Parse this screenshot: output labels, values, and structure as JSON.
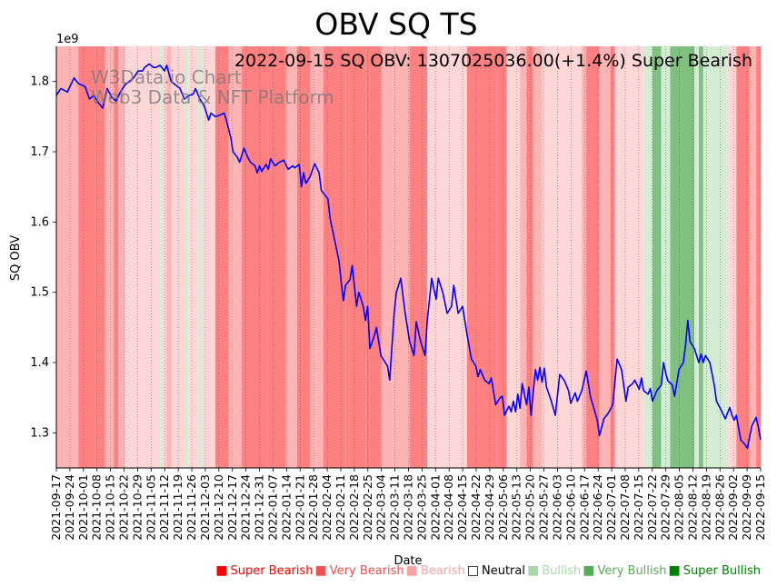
{
  "chart_data": {
    "type": "line",
    "title": "OBV SQ TS",
    "annotation": "2022-09-15 SQ OBV: 1307025036.00(+1.4%) Super Bearish",
    "watermark": [
      "W3Data.io Chart",
      "Web3 Data & NFT Platform"
    ],
    "xlabel": "Date",
    "ylabel": "SQ OBV",
    "y_exponent_label": "1e9",
    "ylim": [
      1.25,
      1.85
    ],
    "yticks": [
      1.3,
      1.4,
      1.5,
      1.6,
      1.7,
      1.8
    ],
    "ytick_labels": [
      "1.3",
      "1.4",
      "1.5",
      "1.6",
      "1.7",
      "1.8"
    ],
    "xlim": [
      "2021-09-17",
      "2022-09-15"
    ],
    "xtick_labels": [
      "2021-09-17",
      "2021-09-24",
      "2021-10-01",
      "2021-10-08",
      "2021-10-15",
      "2021-10-22",
      "2021-10-29",
      "2021-11-05",
      "2021-11-12",
      "2021-11-19",
      "2021-11-26",
      "2021-12-03",
      "2021-12-10",
      "2021-12-17",
      "2021-12-24",
      "2021-12-31",
      "2022-01-07",
      "2022-01-14",
      "2022-01-21",
      "2022-01-28",
      "2022-02-04",
      "2022-02-11",
      "2022-02-18",
      "2022-02-25",
      "2022-03-04",
      "2022-03-11",
      "2022-03-18",
      "2022-03-25",
      "2022-04-01",
      "2022-04-08",
      "2022-04-15",
      "2022-04-22",
      "2022-04-29",
      "2022-05-06",
      "2022-05-13",
      "2022-05-20",
      "2022-05-27",
      "2022-06-03",
      "2022-06-10",
      "2022-06-17",
      "2022-06-24",
      "2022-07-01",
      "2022-07-08",
      "2022-07-15",
      "2022-07-22",
      "2022-07-29",
      "2022-08-05",
      "2022-08-12",
      "2022-08-19",
      "2022-08-26",
      "2022-09-02",
      "2022-09-09",
      "2022-09-15"
    ],
    "series": [
      {
        "name": "SQ OBV",
        "color": "#0000ff",
        "points": [
          [
            0,
            1.78
          ],
          [
            2,
            1.79
          ],
          [
            5,
            1.785
          ],
          [
            8,
            1.805
          ],
          [
            10,
            1.797
          ],
          [
            13,
            1.793
          ],
          [
            15,
            1.775
          ],
          [
            17,
            1.78
          ],
          [
            19,
            1.77
          ],
          [
            21,
            1.762
          ],
          [
            23,
            1.79
          ],
          [
            25,
            1.778
          ],
          [
            27,
            1.772
          ],
          [
            29,
            1.785
          ],
          [
            31,
            1.795
          ],
          [
            33,
            1.8
          ],
          [
            35,
            1.805
          ],
          [
            37,
            1.815
          ],
          [
            39,
            1.815
          ],
          [
            40,
            1.82
          ],
          [
            42,
            1.825
          ],
          [
            44,
            1.82
          ],
          [
            45,
            1.82
          ],
          [
            47,
            1.823
          ],
          [
            49,
            1.815
          ],
          [
            50,
            1.823
          ],
          [
            52,
            1.8
          ],
          [
            54,
            1.795
          ],
          [
            56,
            1.79
          ],
          [
            58,
            1.775
          ],
          [
            60,
            1.78
          ],
          [
            62,
            1.782
          ],
          [
            63,
            1.79
          ],
          [
            65,
            1.775
          ],
          [
            67,
            1.765
          ],
          [
            69,
            1.745
          ],
          [
            70,
            1.755
          ],
          [
            72,
            1.75
          ],
          [
            74,
            1.752
          ],
          [
            76,
            1.755
          ],
          [
            77,
            1.745
          ],
          [
            79,
            1.72
          ],
          [
            80,
            1.7
          ],
          [
            82,
            1.692
          ],
          [
            83,
            1.685
          ],
          [
            85,
            1.705
          ],
          [
            87,
            1.69
          ],
          [
            88,
            1.685
          ],
          [
            90,
            1.68
          ],
          [
            91,
            1.67
          ],
          [
            92,
            1.68
          ],
          [
            93,
            1.672
          ],
          [
            95,
            1.682
          ],
          [
            96,
            1.675
          ],
          [
            97,
            1.69
          ],
          [
            98,
            1.685
          ],
          [
            99,
            1.68
          ],
          [
            101,
            1.685
          ],
          [
            103,
            1.688
          ],
          [
            105,
            1.675
          ],
          [
            107,
            1.68
          ],
          [
            108,
            1.677
          ],
          [
            110,
            1.682
          ],
          [
            111,
            1.65
          ],
          [
            112,
            1.67
          ],
          [
            113,
            1.655
          ],
          [
            115,
            1.665
          ],
          [
            117,
            1.683
          ],
          [
            119,
            1.67
          ],
          [
            120,
            1.645
          ],
          [
            123,
            1.633
          ],
          [
            124,
            1.605
          ],
          [
            126,
            1.575
          ],
          [
            128,
            1.545
          ],
          [
            129,
            1.515
          ],
          [
            130,
            1.488
          ],
          [
            131,
            1.51
          ],
          [
            133,
            1.518
          ],
          [
            134,
            1.538
          ],
          [
            136,
            1.48
          ],
          [
            137,
            1.5
          ],
          [
            139,
            1.48
          ],
          [
            140,
            1.46
          ],
          [
            141,
            1.48
          ],
          [
            142,
            1.42
          ],
          [
            144,
            1.438
          ],
          [
            145,
            1.45
          ],
          [
            147,
            1.41
          ],
          [
            149,
            1.4
          ],
          [
            150,
            1.395
          ],
          [
            151,
            1.375
          ],
          [
            153,
            1.47
          ],
          [
            154,
            1.5
          ],
          [
            156,
            1.52
          ],
          [
            158,
            1.47
          ],
          [
            160,
            1.43
          ],
          [
            162,
            1.41
          ],
          [
            163,
            1.458
          ],
          [
            165,
            1.43
          ],
          [
            167,
            1.41
          ],
          [
            168,
            1.46
          ],
          [
            170,
            1.52
          ],
          [
            171,
            1.505
          ],
          [
            172,
            1.49
          ],
          [
            173,
            1.52
          ],
          [
            175,
            1.5
          ],
          [
            177,
            1.47
          ],
          [
            179,
            1.48
          ],
          [
            180,
            1.51
          ],
          [
            182,
            1.47
          ],
          [
            184,
            1.48
          ],
          [
            186,
            1.44
          ],
          [
            188,
            1.405
          ],
          [
            190,
            1.395
          ],
          [
            191,
            1.38
          ],
          [
            192,
            1.39
          ],
          [
            194,
            1.375
          ],
          [
            196,
            1.37
          ],
          [
            197,
            1.378
          ],
          [
            199,
            1.34
          ],
          [
            201,
            1.35
          ],
          [
            202,
            1.352
          ],
          [
            203,
            1.325
          ],
          [
            205,
            1.338
          ],
          [
            206,
            1.33
          ],
          [
            207,
            1.345
          ],
          [
            208,
            1.33
          ],
          [
            209,
            1.355
          ],
          [
            210,
            1.335
          ],
          [
            211,
            1.37
          ],
          [
            212,
            1.355
          ],
          [
            213,
            1.34
          ],
          [
            214,
            1.365
          ],
          [
            215,
            1.325
          ],
          [
            217,
            1.39
          ],
          [
            218,
            1.375
          ],
          [
            219,
            1.393
          ],
          [
            220,
            1.372
          ],
          [
            221,
            1.392
          ],
          [
            222,
            1.365
          ],
          [
            224,
            1.347
          ],
          [
            226,
            1.325
          ],
          [
            228,
            1.383
          ],
          [
            230,
            1.375
          ],
          [
            232,
            1.36
          ],
          [
            233,
            1.342
          ],
          [
            235,
            1.357
          ],
          [
            236,
            1.345
          ],
          [
            238,
            1.36
          ],
          [
            240,
            1.388
          ],
          [
            242,
            1.35
          ],
          [
            243,
            1.34
          ],
          [
            245,
            1.318
          ],
          [
            246,
            1.296
          ],
          [
            248,
            1.32
          ],
          [
            250,
            1.328
          ],
          [
            252,
            1.34
          ],
          [
            254,
            1.405
          ],
          [
            256,
            1.39
          ],
          [
            258,
            1.345
          ],
          [
            259,
            1.365
          ],
          [
            261,
            1.37
          ],
          [
            262,
            1.375
          ],
          [
            264,
            1.362
          ],
          [
            265,
            1.378
          ],
          [
            266,
            1.36
          ],
          [
            268,
            1.355
          ],
          [
            269,
            1.363
          ],
          [
            270,
            1.345
          ],
          [
            272,
            1.36
          ],
          [
            274,
            1.368
          ],
          [
            275,
            1.4
          ],
          [
            276,
            1.385
          ],
          [
            277,
            1.374
          ],
          [
            279,
            1.368
          ],
          [
            280,
            1.352
          ],
          [
            281,
            1.37
          ],
          [
            282,
            1.39
          ],
          [
            284,
            1.4
          ],
          [
            285,
            1.425
          ],
          [
            286,
            1.46
          ],
          [
            287,
            1.43
          ],
          [
            289,
            1.42
          ],
          [
            291,
            1.4
          ],
          [
            292,
            1.412
          ],
          [
            293,
            1.4
          ],
          [
            294,
            1.41
          ],
          [
            296,
            1.4
          ],
          [
            298,
            1.368
          ],
          [
            299,
            1.345
          ],
          [
            301,
            1.333
          ],
          [
            303,
            1.32
          ],
          [
            305,
            1.336
          ],
          [
            306,
            1.325
          ],
          [
            307,
            1.318
          ],
          [
            308,
            1.325
          ],
          [
            310,
            1.29
          ],
          [
            312,
            1.283
          ],
          [
            313,
            1.278
          ],
          [
            315,
            1.31
          ],
          [
            317,
            1.322
          ],
          [
            318,
            1.307
          ],
          [
            319,
            1.29
          ]
        ]
      }
    ],
    "signal_bands": [
      {
        "start": 0,
        "end": 4,
        "signal": "Bearish"
      },
      {
        "start": 4,
        "end": 10,
        "signal": "Bearish"
      },
      {
        "start": 10,
        "end": 18,
        "signal": "Very Bearish"
      },
      {
        "start": 18,
        "end": 22,
        "signal": "Very Bearish"
      },
      {
        "start": 22,
        "end": 24,
        "signal": "Bearish"
      },
      {
        "start": 24,
        "end": 26,
        "signal": "Bearish"
      },
      {
        "start": 26,
        "end": 28,
        "signal": "Very Bearish"
      },
      {
        "start": 28,
        "end": 31,
        "signal": "Bearish"
      },
      {
        "start": 31,
        "end": 47,
        "signal": "Neutral"
      },
      {
        "start": 47,
        "end": 48,
        "signal": "Bullish"
      },
      {
        "start": 48,
        "end": 50,
        "signal": "Neutral"
      },
      {
        "start": 50,
        "end": 52,
        "signal": "Bearish"
      },
      {
        "start": 52,
        "end": 58,
        "signal": "Neutral"
      },
      {
        "start": 58,
        "end": 60,
        "signal": "Bullish"
      },
      {
        "start": 60,
        "end": 64,
        "signal": "Neutral"
      },
      {
        "start": 64,
        "end": 66,
        "signal": "Bullish"
      },
      {
        "start": 66,
        "end": 72,
        "signal": "Neutral"
      },
      {
        "start": 72,
        "end": 78,
        "signal": "Very Bearish"
      },
      {
        "start": 78,
        "end": 84,
        "signal": "Bearish"
      },
      {
        "start": 84,
        "end": 96,
        "signal": "Very Bearish"
      },
      {
        "start": 96,
        "end": 104,
        "signal": "Very Bearish"
      },
      {
        "start": 104,
        "end": 109,
        "signal": "Bearish"
      },
      {
        "start": 109,
        "end": 115,
        "signal": "Very Bearish"
      },
      {
        "start": 115,
        "end": 121,
        "signal": "Bearish"
      },
      {
        "start": 121,
        "end": 131,
        "signal": "Very Bearish"
      },
      {
        "start": 131,
        "end": 140,
        "signal": "Very Bearish"
      },
      {
        "start": 140,
        "end": 147,
        "signal": "Very Bearish"
      },
      {
        "start": 147,
        "end": 152,
        "signal": "Bearish"
      },
      {
        "start": 152,
        "end": 160,
        "signal": "Bearish"
      },
      {
        "start": 160,
        "end": 168,
        "signal": "Very Bearish"
      },
      {
        "start": 168,
        "end": 182,
        "signal": "Neutral"
      },
      {
        "start": 182,
        "end": 186,
        "signal": "Neutral"
      },
      {
        "start": 186,
        "end": 200,
        "signal": "Very Bearish"
      },
      {
        "start": 200,
        "end": 204,
        "signal": "Very Bearish"
      },
      {
        "start": 204,
        "end": 210,
        "signal": "Neutral"
      },
      {
        "start": 210,
        "end": 213,
        "signal": "Bearish"
      },
      {
        "start": 213,
        "end": 216,
        "signal": "Very Bearish"
      },
      {
        "start": 216,
        "end": 220,
        "signal": "Bearish"
      },
      {
        "start": 220,
        "end": 238,
        "signal": "Neutral"
      },
      {
        "start": 238,
        "end": 240,
        "signal": "Bearish"
      },
      {
        "start": 240,
        "end": 246,
        "signal": "Very Bearish"
      },
      {
        "start": 246,
        "end": 251,
        "signal": "Bearish"
      },
      {
        "start": 251,
        "end": 253,
        "signal": "Very Bearish"
      },
      {
        "start": 253,
        "end": 266,
        "signal": "Neutral"
      },
      {
        "start": 266,
        "end": 270,
        "signal": "Bullish"
      },
      {
        "start": 270,
        "end": 274,
        "signal": "Very Bullish"
      },
      {
        "start": 274,
        "end": 278,
        "signal": "Bullish"
      },
      {
        "start": 278,
        "end": 289,
        "signal": "Very Bullish"
      },
      {
        "start": 289,
        "end": 291,
        "signal": "Bullish"
      },
      {
        "start": 291,
        "end": 293,
        "signal": "Very Bullish"
      },
      {
        "start": 293,
        "end": 297,
        "signal": "Bullish"
      },
      {
        "start": 297,
        "end": 304,
        "signal": "Bullish"
      },
      {
        "start": 304,
        "end": 308,
        "signal": "Neutral"
      },
      {
        "start": 308,
        "end": 314,
        "signal": "Very Bearish"
      },
      {
        "start": 314,
        "end": 317,
        "signal": "Bearish"
      },
      {
        "start": 317,
        "end": 319,
        "signal": "Very Bearish"
      }
    ],
    "legend": [
      {
        "label": "Super Bearish",
        "color": "#ff0000"
      },
      {
        "label": "Very Bearish",
        "color": "#f05050"
      },
      {
        "label": "Bearish",
        "color": "#f5a3a3"
      },
      {
        "label": "Neutral",
        "color": "#000000"
      },
      {
        "label": "Bullish",
        "color": "#a8d8a8"
      },
      {
        "label": "Very Bullish",
        "color": "#55aa55"
      },
      {
        "label": "Super Bullish",
        "color": "#008000"
      }
    ],
    "signal_colors": {
      "Super Bearish": "#ff6060",
      "Very Bearish": "#ff8080",
      "Bearish": "#ffb3b3",
      "Neutral": "#ffd6d6",
      "Bullish": "#d4ecd4",
      "Very Bullish": "#80c080",
      "Super Bullish": "#4a9a4a"
    },
    "x_count": 319
  }
}
